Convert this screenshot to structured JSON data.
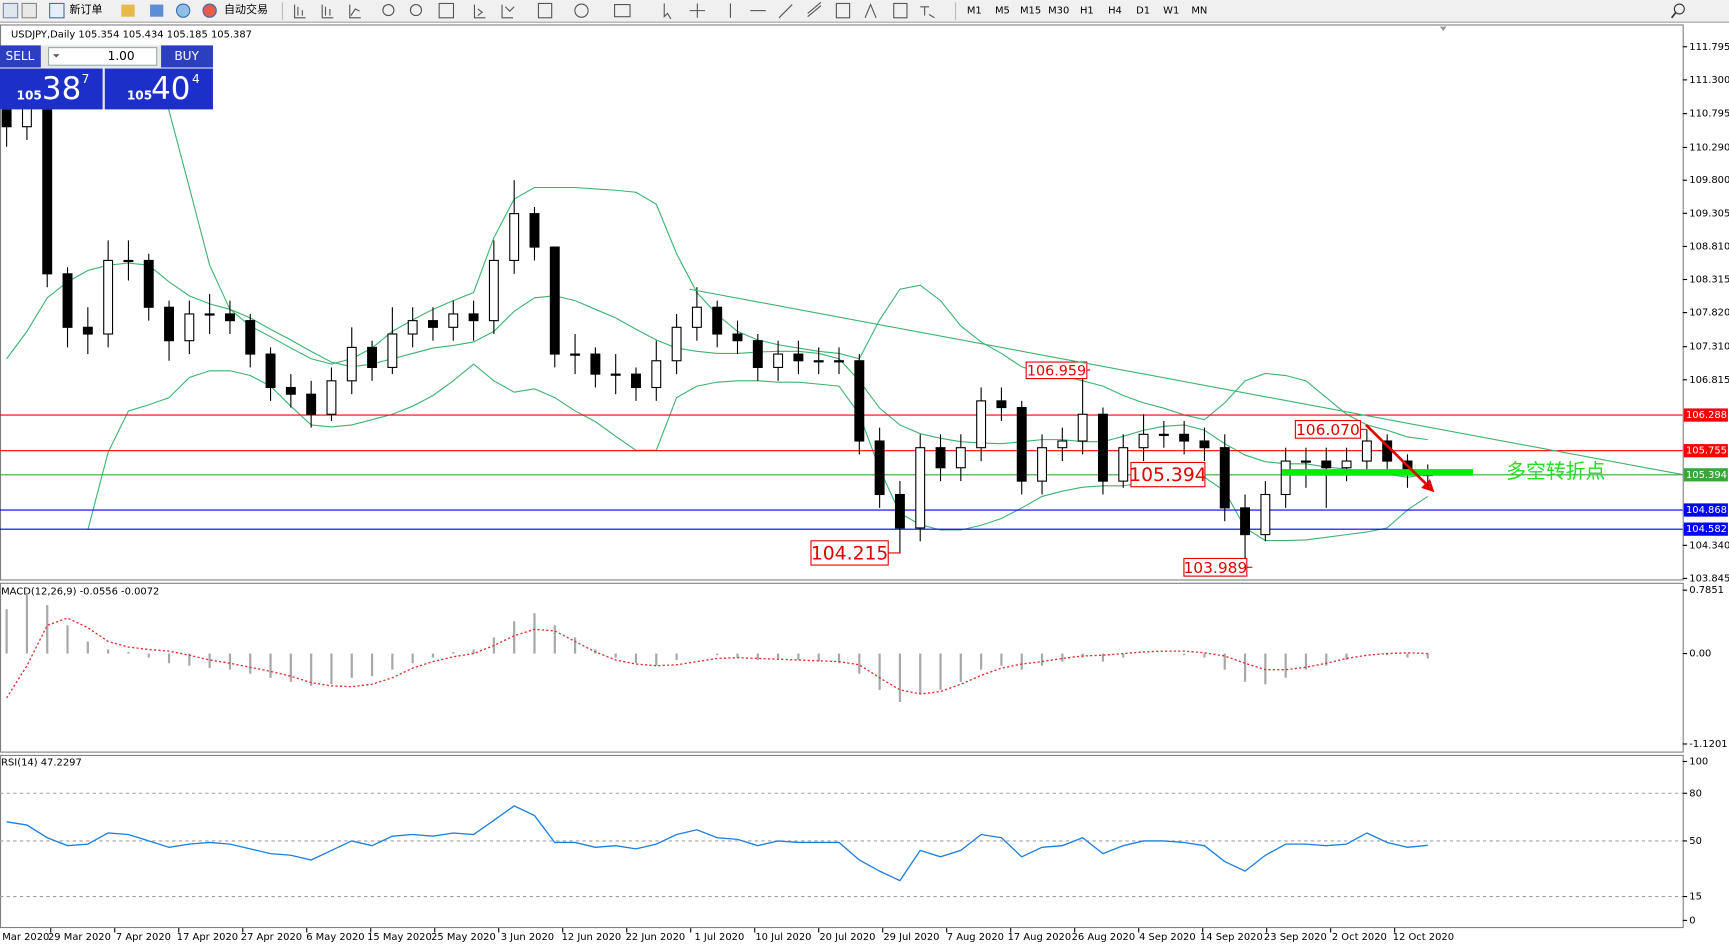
{
  "toolbar": {
    "new_order": "新订单",
    "auto_trading": "自动交易",
    "timeframes": [
      "M1",
      "M5",
      "M15",
      "M30",
      "H1",
      "H4",
      "D1",
      "W1",
      "MN"
    ]
  },
  "trade_panel": {
    "sell": "SELL",
    "buy": "BUY",
    "lot": "1.00",
    "sell_big": "105",
    "sell_pips": "38",
    "sell_frac": "7",
    "buy_big": "105",
    "buy_pips": "40",
    "buy_frac": "4"
  },
  "chart_data": [
    {
      "type": "candlestick",
      "title": "USDJPY,Daily  105.354 105.434 105.185 105.387",
      "open": [
        111.1,
        110.6,
        110.9,
        108.4,
        107.6,
        107.5,
        108.6,
        108.6,
        107.9,
        107.4,
        107.8,
        107.8,
        107.7,
        107.2,
        106.7,
        106.6,
        106.3,
        106.8,
        107.3,
        107.0,
        107.5,
        107.7,
        107.6,
        107.8,
        107.7,
        108.6,
        109.3,
        108.8,
        107.2,
        107.2,
        106.9,
        106.9,
        106.7,
        107.1,
        107.6,
        107.9,
        107.5,
        107.4,
        107.0,
        107.2,
        107.1,
        107.1,
        107.1,
        105.9,
        105.1,
        104.6,
        105.8,
        105.5,
        105.8,
        106.5,
        106.4,
        105.3,
        105.8,
        105.9,
        106.3,
        105.3,
        105.8,
        106.0,
        106.0,
        105.9,
        105.8,
        104.9,
        104.5,
        105.1,
        105.6,
        105.6,
        105.5,
        105.6,
        105.9,
        105.6,
        105.4
      ],
      "high": [
        111.5,
        111.2,
        110.9,
        108.5,
        107.9,
        108.9,
        108.9,
        108.7,
        108.0,
        108.0,
        108.1,
        108.0,
        107.8,
        107.3,
        106.9,
        106.8,
        107.0,
        107.6,
        107.4,
        107.9,
        107.9,
        107.9,
        108.0,
        108.0,
        108.9,
        109.8,
        109.4,
        108.8,
        107.5,
        107.3,
        107.2,
        107.0,
        107.4,
        107.8,
        108.2,
        108.0,
        107.7,
        107.5,
        107.4,
        107.4,
        107.3,
        107.3,
        107.2,
        106.1,
        105.3,
        106.0,
        106.0,
        106.0,
        106.7,
        106.7,
        106.5,
        106.0,
        106.1,
        106.959,
        106.4,
        106.0,
        106.3,
        106.2,
        106.2,
        106.1,
        106.0,
        105.1,
        105.3,
        105.8,
        105.8,
        105.8,
        105.8,
        106.07,
        106.0,
        105.7,
        105.55
      ],
      "low": [
        110.3,
        110.4,
        108.2,
        107.3,
        107.2,
        107.3,
        108.3,
        107.7,
        107.1,
        107.2,
        107.5,
        107.5,
        107.0,
        106.5,
        106.4,
        106.1,
        106.2,
        106.6,
        106.8,
        106.9,
        107.3,
        107.4,
        107.4,
        107.4,
        107.5,
        108.4,
        108.6,
        107.0,
        106.9,
        106.7,
        106.6,
        106.5,
        106.5,
        106.9,
        107.4,
        107.3,
        107.2,
        106.8,
        106.8,
        106.9,
        106.9,
        106.9,
        105.7,
        104.9,
        104.215,
        104.4,
        105.3,
        105.3,
        105.6,
        106.2,
        105.1,
        105.1,
        105.6,
        105.7,
        105.1,
        105.2,
        105.6,
        105.8,
        105.7,
        105.6,
        104.7,
        103.989,
        104.4,
        104.9,
        105.2,
        104.9,
        105.3,
        105.4,
        105.4,
        105.2,
        105.2
      ],
      "close": [
        110.6,
        110.9,
        108.4,
        107.6,
        107.5,
        108.6,
        108.6,
        107.9,
        107.4,
        107.8,
        107.8,
        107.7,
        107.2,
        106.7,
        106.6,
        106.3,
        106.8,
        107.3,
        107.0,
        107.5,
        107.7,
        107.6,
        107.8,
        107.7,
        108.6,
        109.3,
        108.8,
        107.2,
        107.2,
        106.9,
        106.9,
        106.7,
        107.1,
        107.6,
        107.9,
        107.5,
        107.4,
        107.0,
        107.2,
        107.1,
        107.1,
        107.1,
        105.9,
        105.1,
        104.6,
        105.8,
        105.5,
        105.8,
        106.5,
        106.4,
        105.3,
        105.8,
        105.9,
        106.3,
        105.3,
        105.8,
        106.0,
        106.0,
        105.9,
        105.8,
        104.9,
        104.5,
        105.1,
        105.6,
        105.6,
        105.5,
        105.6,
        105.9,
        105.6,
        105.4,
        105.39
      ],
      "bollinger": {
        "color": "#3cb371",
        "upper": [
          null,
          null,
          null,
          null,
          null,
          null,
          null,
          111.58,
          110.84,
          109.69,
          108.53,
          107.87,
          107.62,
          107.46,
          107.29,
          107.13,
          107.05,
          107.13,
          107.29,
          107.54,
          107.71,
          107.87,
          108.0,
          108.12,
          108.94,
          109.52,
          109.69,
          109.69,
          109.69,
          109.67,
          109.65,
          109.62,
          109.44,
          108.7,
          108.12,
          107.79,
          107.54,
          107.41,
          107.34,
          107.29,
          107.24,
          107.21,
          107.13,
          107.71,
          108.17,
          108.23,
          108.0,
          107.62,
          107.38,
          107.21,
          107.01,
          106.91,
          106.88,
          106.8,
          106.72,
          106.58,
          106.47,
          106.39,
          106.29,
          106.22,
          106.47,
          106.8,
          106.91,
          106.88,
          106.8,
          106.55,
          106.3,
          106.14,
          106.06,
          105.96,
          105.92
        ],
        "middle": [
          107.13,
          107.54,
          108.04,
          108.28,
          108.45,
          108.53,
          108.56,
          108.53,
          108.28,
          108.07,
          107.95,
          107.87,
          107.74,
          107.57,
          107.41,
          107.24,
          107.08,
          107.01,
          107.05,
          107.13,
          107.21,
          107.29,
          107.33,
          107.38,
          107.54,
          107.84,
          108.04,
          108.07,
          108.0,
          107.87,
          107.74,
          107.57,
          107.41,
          107.29,
          107.24,
          107.21,
          107.21,
          107.23,
          107.24,
          107.24,
          107.21,
          107.13,
          106.8,
          106.39,
          106.14,
          106.01,
          105.94,
          105.89,
          105.87,
          105.86,
          105.89,
          105.92,
          105.92,
          105.89,
          105.89,
          105.97,
          106.06,
          106.12,
          106.14,
          106.06,
          105.86,
          105.69,
          105.59,
          105.56,
          105.56,
          105.51,
          105.48,
          105.43,
          105.4,
          105.36,
          105.4
        ],
        "lower": [
          null,
          null,
          null,
          null,
          104.57,
          105.73,
          106.35,
          106.44,
          106.55,
          106.85,
          106.95,
          106.95,
          106.88,
          106.72,
          106.42,
          106.14,
          106.11,
          106.14,
          106.22,
          106.3,
          106.42,
          106.58,
          106.8,
          107.05,
          106.8,
          106.63,
          106.68,
          106.55,
          106.35,
          106.19,
          105.97,
          105.76,
          105.76,
          106.55,
          106.72,
          106.78,
          106.8,
          106.8,
          106.78,
          106.78,
          106.75,
          106.72,
          106.3,
          105.48,
          104.82,
          104.65,
          104.57,
          104.57,
          104.64,
          104.74,
          104.9,
          105.07,
          105.15,
          105.21,
          105.23,
          105.23,
          105.28,
          105.33,
          105.36,
          105.36,
          105.15,
          104.6,
          104.41,
          104.41,
          104.42,
          104.46,
          104.5,
          104.54,
          104.6,
          104.87,
          105.07
        ]
      },
      "ylim": [
        103.83,
        112.08
      ],
      "yticks": [
        111.795,
        {
          "value": 111.3,
          "label": "111.300"
        },
        110.795,
        {
          "value": 110.29,
          "label": "110.290"
        },
        {
          "value": 109.8,
          "label": "109.800"
        },
        109.305,
        {
          "value": 108.81,
          "label": "108.810"
        },
        108.315,
        {
          "value": 107.82,
          "label": "107.820"
        },
        {
          "value": 107.31,
          "label": "107.310"
        },
        106.815,
        {
          "value": 104.34,
          "label": "104.340"
        },
        103.845
      ],
      "levels": [
        {
          "value": 106.288,
          "color": "#ff0000"
        },
        {
          "value": 105.755,
          "color": "#ff0000"
        },
        {
          "value": 105.394,
          "color": "#3aa63a"
        },
        {
          "value": 104.868,
          "color": "#0000ff"
        },
        {
          "value": 104.582,
          "color": "#0000ff"
        }
      ],
      "annotations": [
        "106.959",
        "104.215",
        "105.394",
        "106.070",
        "103.989",
        "多空转折点"
      ],
      "date_ticks": [
        "Mar 2020",
        "29 Mar 2020",
        "7 Apr 2020",
        "17 Apr 2020",
        "27 Apr 2020",
        "6 May 2020",
        "15 May 2020",
        "25 May 2020",
        "3 Jun 2020",
        "12 Jun 2020",
        "22 Jun 2020",
        "1 Jul 2020",
        "10 Jul 2020",
        "20 Jul 2020",
        "29 Jul 2020",
        "7 Aug 2020",
        "17 Aug 2020",
        "26 Aug 2020",
        "4 Sep 2020",
        "14 Sep 2020",
        "23 Sep 2020",
        "2 Oct 2020",
        "12 Oct 2020"
      ]
    },
    {
      "type": "macd",
      "title": "MACD(12,26,9) -0.0556 -0.0072",
      "color": "#a8a8a8",
      "signal_color": "#e03030",
      "histogram": [
        0.55,
        0.75,
        0.6,
        0.35,
        0.15,
        0.05,
        0.02,
        -0.05,
        -0.12,
        -0.15,
        -0.18,
        -0.2,
        -0.25,
        -0.3,
        -0.35,
        -0.4,
        -0.38,
        -0.3,
        -0.28,
        -0.2,
        -0.12,
        -0.05,
        0.02,
        0.05,
        0.2,
        0.4,
        0.5,
        0.35,
        0.2,
        0.05,
        -0.05,
        -0.12,
        -0.15,
        -0.08,
        0.0,
        -0.02,
        -0.05,
        -0.08,
        -0.06,
        -0.08,
        -0.1,
        -0.12,
        -0.25,
        -0.45,
        -0.6,
        -0.5,
        -0.45,
        -0.35,
        -0.2,
        -0.15,
        -0.2,
        -0.15,
        -0.1,
        -0.05,
        -0.1,
        -0.05,
        0.0,
        0.0,
        -0.02,
        -0.05,
        -0.2,
        -0.35,
        -0.38,
        -0.3,
        -0.2,
        -0.15,
        -0.08,
        0.0,
        -0.02,
        -0.05,
        -0.06
      ],
      "signal": [
        -0.55,
        -0.15,
        0.35,
        0.44,
        0.32,
        0.15,
        0.08,
        0.05,
        0.03,
        -0.02,
        -0.08,
        -0.12,
        -0.17,
        -0.22,
        -0.28,
        -0.36,
        -0.4,
        -0.41,
        -0.38,
        -0.3,
        -0.18,
        -0.1,
        -0.04,
        0.0,
        0.1,
        0.22,
        0.3,
        0.28,
        0.15,
        0.02,
        -0.08,
        -0.13,
        -0.15,
        -0.14,
        -0.1,
        -0.06,
        -0.05,
        -0.06,
        -0.07,
        -0.08,
        -0.09,
        -0.1,
        -0.14,
        -0.3,
        -0.45,
        -0.5,
        -0.47,
        -0.38,
        -0.27,
        -0.18,
        -0.13,
        -0.1,
        -0.06,
        -0.03,
        -0.02,
        0.0,
        0.02,
        0.03,
        0.03,
        0.01,
        -0.03,
        -0.12,
        -0.2,
        -0.2,
        -0.17,
        -0.12,
        -0.06,
        -0.02,
        0.0,
        0.01,
        0.0
      ],
      "ylim": [
        -1.2,
        0.85
      ],
      "yticks": [
        0.7851,
        {
          "value": 0,
          "label": "0.00"
        },
        -1.1201
      ]
    },
    {
      "type": "rsi",
      "title": "RSI(14) 47.2297",
      "color": "#1e7fe0",
      "values": [
        62,
        60,
        52,
        47,
        48,
        55,
        54,
        50,
        46,
        48,
        49,
        48,
        45,
        42,
        41,
        38,
        44,
        50,
        47,
        53,
        54,
        53,
        55,
        54,
        63,
        72,
        66,
        49,
        49,
        46,
        47,
        45,
        48,
        54,
        57,
        52,
        51,
        47,
        50,
        49,
        49,
        49,
        38,
        31,
        25,
        44,
        40,
        44,
        54,
        52,
        40,
        46,
        47,
        52,
        42,
        47,
        50,
        50,
        49,
        47,
        37,
        31,
        41,
        48,
        48,
        47,
        48,
        55,
        49,
        46,
        47.2297
      ],
      "ylim": [
        0,
        100
      ],
      "yticks": [
        100,
        80,
        50,
        15,
        0
      ]
    }
  ]
}
